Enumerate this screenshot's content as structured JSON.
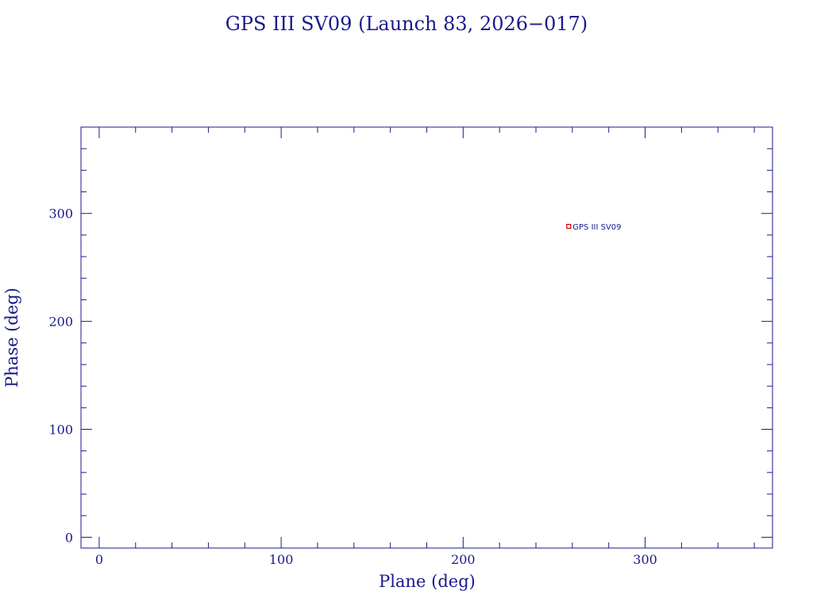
{
  "chart_data": {
    "type": "scatter",
    "title": "GPS III SV09 (Launch 83, 2026−017)",
    "xlabel": "Plane (deg)",
    "ylabel": "Phase (deg)",
    "xlim": [
      -10,
      370
    ],
    "ylim": [
      -10,
      380
    ],
    "xticks": [
      0,
      100,
      200,
      300
    ],
    "yticks": [
      0,
      100,
      200,
      300
    ],
    "grid": false,
    "points": [
      {
        "x": 258,
        "y": 288,
        "label": "GPS III SV09",
        "color": "#cc0000"
      }
    ]
  },
  "colors": {
    "ink": "#1a1a8c",
    "marker": "#cc0000"
  }
}
